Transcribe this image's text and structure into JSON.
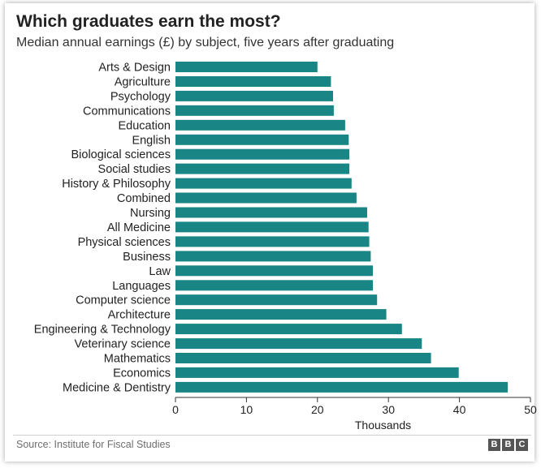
{
  "header": {
    "title": "Which graduates earn the most?",
    "subtitle": "Median annual earnings (£) by subject, five years after graduating"
  },
  "footer": {
    "source": "Source: Institute for Fiscal Studies",
    "logo_letters": [
      "B",
      "B",
      "C"
    ]
  },
  "colors": {
    "bar": "#1a8585",
    "axis": "#333333",
    "text": "#222222"
  },
  "chart_data": {
    "type": "bar",
    "orientation": "horizontal",
    "title": "Which graduates earn the most?",
    "subtitle": "Median annual earnings (£) by subject, five years after graduating",
    "xlabel": "Thousands",
    "ylabel": "",
    "xlim": [
      0,
      50
    ],
    "xticks": [
      0,
      10,
      20,
      30,
      40,
      50
    ],
    "grid": false,
    "categories": [
      "Arts & Design",
      "Agriculture",
      "Psychology",
      "Communications",
      "Education",
      "English",
      "Biological sciences",
      "Social studies",
      "History & Philosophy",
      "Combined",
      "Nursing",
      "All Medicine",
      "Physical sciences",
      "Business",
      "Law",
      "Languages",
      "Computer science",
      "Architecture",
      "Engineering & Technology",
      "Veterinary science",
      "Mathematics",
      "Economics",
      "Medicine & Dentistry"
    ],
    "values": [
      20.0,
      21.9,
      22.2,
      22.3,
      23.9,
      24.4,
      24.5,
      24.5,
      24.8,
      25.5,
      27.0,
      27.2,
      27.3,
      27.5,
      27.8,
      27.8,
      28.4,
      29.7,
      31.9,
      34.7,
      36.0,
      39.9,
      46.8
    ]
  }
}
